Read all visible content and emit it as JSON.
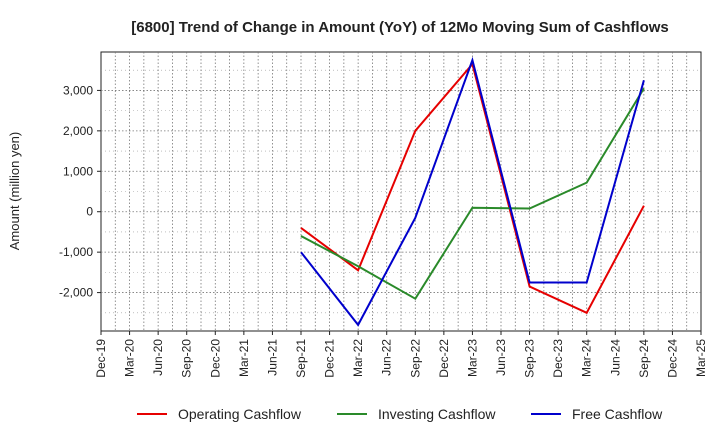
{
  "chart_data": {
    "type": "line",
    "title": "[6800]  Trend of Change in Amount (YoY) of 12Mo Moving Sum of Cashflows",
    "xlabel": "",
    "ylabel": "Amount (million yen)",
    "categories": [
      "Dec-19",
      "Mar-20",
      "Jun-20",
      "Sep-20",
      "Dec-20",
      "Mar-21",
      "Jun-21",
      "Sep-21",
      "Dec-21",
      "Mar-22",
      "Jun-22",
      "Sep-22",
      "Dec-22",
      "Mar-23",
      "Jun-23",
      "Sep-23",
      "Dec-23",
      "Mar-24",
      "Jun-24",
      "Sep-24",
      "Dec-24",
      "Mar-25"
    ],
    "yticks": [
      -2000,
      -1000,
      0,
      1000,
      2000,
      3000
    ],
    "ytick_labels": [
      "-2,000",
      "-1,000",
      "0",
      "1,000",
      "2,000",
      "3,000"
    ],
    "ylim": [
      -2950,
      3950
    ],
    "grid": true,
    "legend_position": "bottom",
    "series": [
      {
        "name": "Operating Cashflow",
        "color": "#e60000",
        "values": [
          null,
          null,
          null,
          null,
          null,
          null,
          null,
          -400,
          null,
          -1450,
          null,
          2000,
          null,
          3650,
          null,
          -1850,
          null,
          -2500,
          null,
          150,
          null,
          null
        ]
      },
      {
        "name": "Investing Cashflow",
        "color": "#2a8a2a",
        "values": [
          null,
          null,
          null,
          null,
          null,
          null,
          null,
          -600,
          null,
          -1350,
          null,
          -2150,
          null,
          100,
          null,
          80,
          null,
          720,
          null,
          3050,
          null,
          null
        ]
      },
      {
        "name": "Free Cashflow",
        "color": "#0000cc",
        "values": [
          null,
          null,
          null,
          null,
          null,
          null,
          null,
          -1000,
          null,
          -2800,
          null,
          -150,
          null,
          3750,
          null,
          -1750,
          null,
          -1750,
          null,
          3250,
          null,
          null
        ]
      }
    ]
  }
}
